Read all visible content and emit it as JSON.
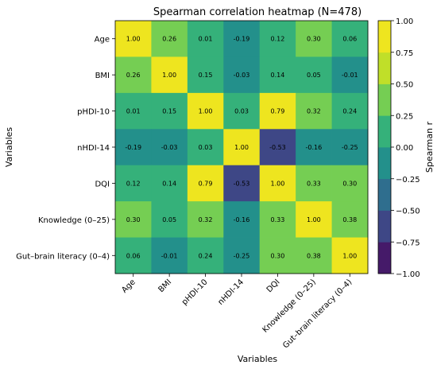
{
  "chart_data": {
    "type": "heatmap",
    "title": "Spearman correlation heatmap (N=478)",
    "xlabel": "Variables",
    "ylabel": "Variables",
    "categories": [
      "Age",
      "BMI",
      "pHDI-10",
      "nHDI-14",
      "DQI",
      "Knowledge (0–25)",
      "Gut–brain literacy (0–4)"
    ],
    "matrix": [
      [
        1.0,
        0.26,
        0.01,
        -0.19,
        0.12,
        0.3,
        0.06
      ],
      [
        0.26,
        1.0,
        0.15,
        -0.03,
        0.14,
        0.05,
        -0.01
      ],
      [
        0.01,
        0.15,
        1.0,
        0.03,
        0.79,
        0.32,
        0.24
      ],
      [
        -0.19,
        -0.03,
        0.03,
        1.0,
        -0.53,
        -0.16,
        -0.25
      ],
      [
        0.12,
        0.14,
        0.79,
        -0.53,
        1.0,
        0.33,
        0.3
      ],
      [
        0.3,
        0.05,
        0.32,
        -0.16,
        0.33,
        1.0,
        0.38
      ],
      [
        0.06,
        -0.01,
        0.24,
        -0.25,
        0.3,
        0.38,
        1.0
      ]
    ],
    "value_format": "2 decimals",
    "colormap": "viridis",
    "colorbar": {
      "label": "Spearman r",
      "range": [
        -1.0,
        1.0
      ],
      "ticks": [
        1.0,
        0.75,
        0.5,
        0.25,
        0.0,
        -0.25,
        -0.5,
        -0.75,
        -1.0
      ],
      "tick_labels": [
        "1.00",
        "0.75",
        "0.50",
        "0.25",
        "0.00",
        "−0.25",
        "−0.50",
        "−0.75",
        "−1.00"
      ],
      "levels": 8
    },
    "grid": false
  }
}
